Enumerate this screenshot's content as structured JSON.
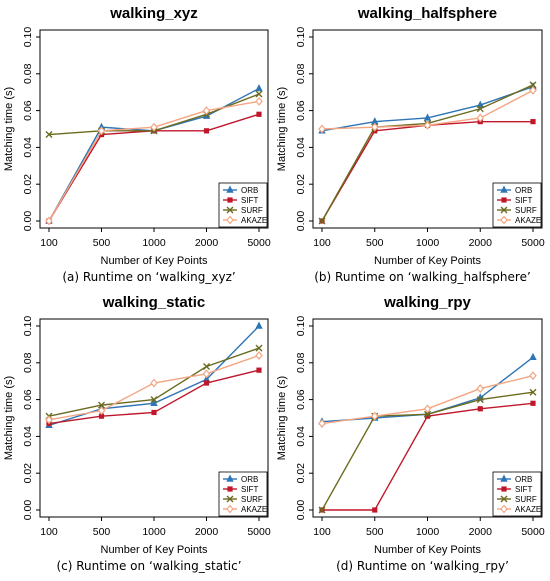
{
  "chart_data": [
    {
      "type": "line",
      "title": "walking_xyz",
      "caption": "(a) Runtime on ‘walking_xyz’",
      "xlabel": "Number of Key Points",
      "ylabel": "Matching time (s)",
      "categories": [
        "100",
        "500",
        "1000",
        "2000",
        "5000"
      ],
      "ylim": [
        0,
        0.1
      ],
      "yticks": [
        "0.00",
        "0.02",
        "0.04",
        "0.06",
        "0.08",
        "0.10"
      ],
      "series": [
        {
          "name": "ORB",
          "values": [
            0.0,
            0.051,
            0.049,
            0.057,
            0.072
          ]
        },
        {
          "name": "SIFT",
          "values": [
            0.0,
            0.047,
            0.049,
            0.049,
            0.058
          ]
        },
        {
          "name": "SURF",
          "values": [
            0.047,
            0.049,
            0.049,
            0.058,
            0.069
          ]
        },
        {
          "name": "AKAZE",
          "values": [
            0.0,
            0.049,
            0.051,
            0.06,
            0.065
          ]
        }
      ],
      "legend": "bottom-right"
    },
    {
      "type": "line",
      "title": "walking_halfsphere",
      "caption": "(b) Runtime on ‘walking_halfsphere’",
      "xlabel": "Number of Key Points",
      "ylabel": "Matching time (s)",
      "categories": [
        "100",
        "500",
        "1000",
        "2000",
        "5000"
      ],
      "ylim": [
        0,
        0.1
      ],
      "yticks": [
        "0.00",
        "0.02",
        "0.04",
        "0.06",
        "0.08",
        "0.10"
      ],
      "series": [
        {
          "name": "ORB",
          "values": [
            0.049,
            0.054,
            0.056,
            0.063,
            0.073
          ]
        },
        {
          "name": "SIFT",
          "values": [
            0.0,
            0.049,
            0.052,
            0.054,
            0.054
          ]
        },
        {
          "name": "SURF",
          "values": [
            0.0,
            0.051,
            0.053,
            0.061,
            0.074
          ]
        },
        {
          "name": "AKAZE",
          "values": [
            0.05,
            0.051,
            0.052,
            0.056,
            0.071
          ]
        }
      ],
      "legend": "bottom-right"
    },
    {
      "type": "line",
      "title": "walking_static",
      "caption": "(c) Runtime on ‘walking_static’",
      "xlabel": "Number of Key Points",
      "ylabel": "Matching time (s)",
      "categories": [
        "100",
        "500",
        "1000",
        "2000",
        "5000"
      ],
      "ylim": [
        0,
        0.1
      ],
      "yticks": [
        "0.00",
        "0.02",
        "0.04",
        "0.06",
        "0.08",
        "0.10"
      ],
      "series": [
        {
          "name": "ORB",
          "values": [
            0.046,
            0.055,
            0.058,
            0.071,
            0.1
          ]
        },
        {
          "name": "SIFT",
          "values": [
            0.047,
            0.051,
            0.053,
            0.069,
            0.076
          ]
        },
        {
          "name": "SURF",
          "values": [
            0.051,
            0.057,
            0.06,
            0.078,
            0.088
          ]
        },
        {
          "name": "AKAZE",
          "values": [
            0.049,
            0.054,
            0.069,
            0.074,
            0.084
          ]
        }
      ],
      "legend": "bottom-right"
    },
    {
      "type": "line",
      "title": "walking_rpy",
      "caption": "(d) Runtime on ‘walking_rpy’",
      "xlabel": "Number of Key Points",
      "ylabel": "Matching time (s)",
      "categories": [
        "100",
        "500",
        "1000",
        "2000",
        "5000"
      ],
      "ylim": [
        0,
        0.1
      ],
      "yticks": [
        "0.00",
        "0.02",
        "0.04",
        "0.06",
        "0.08",
        "0.10"
      ],
      "series": [
        {
          "name": "ORB",
          "values": [
            0.048,
            0.05,
            0.052,
            0.061,
            0.083
          ]
        },
        {
          "name": "SIFT",
          "values": [
            0.0,
            0.0,
            0.051,
            0.055,
            0.058
          ]
        },
        {
          "name": "SURF",
          "values": [
            0.0,
            0.051,
            0.052,
            0.06,
            0.064
          ]
        },
        {
          "name": "AKAZE",
          "values": [
            0.047,
            0.051,
            0.055,
            0.066,
            0.073
          ]
        }
      ],
      "legend": "bottom-right"
    }
  ],
  "series_styles": {
    "ORB": {
      "color": "#2e75b6",
      "marker": "triangle"
    },
    "SIFT": {
      "color": "#c0172b",
      "marker": "square"
    },
    "SURF": {
      "color": "#6b6b1f",
      "marker": "x"
    },
    "AKAZE": {
      "color": "#f4a582",
      "marker": "diamond"
    }
  }
}
